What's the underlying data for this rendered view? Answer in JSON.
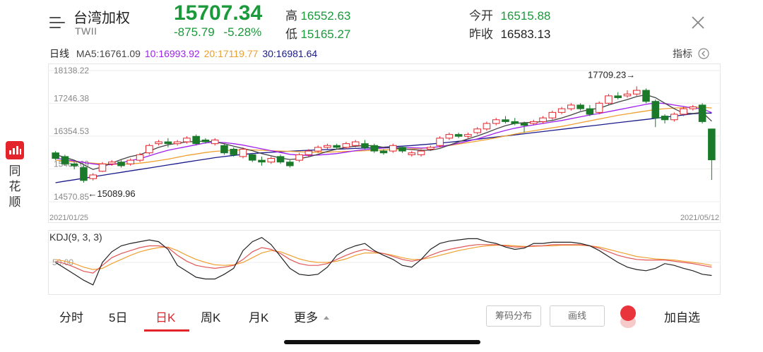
{
  "header": {
    "name": "台湾加权",
    "code": "TWII",
    "price": "15707.34",
    "change": "-875.79",
    "change_pct": "-5.28%",
    "high_label": "高",
    "high_value": "16552.63",
    "low_label": "低",
    "low_value": "15165.27",
    "open_label": "今开",
    "open_value": "16515.88",
    "prev_label": "昨收",
    "prev_value": "16583.13"
  },
  "ma": {
    "period_label": "日线",
    "ma5": "MA5:16761.09",
    "ma10": "10:16993.92",
    "ma20": "20:17119.77",
    "ma30": "30:16981.64",
    "indicator_label": "指标"
  },
  "side_brand": [
    "同",
    "花",
    "顺"
  ],
  "kdj": {
    "label": "KDJ(9, 3, 3)",
    "level": "50.00"
  },
  "chart_data": {
    "type": "candlestick",
    "title": "",
    "y_ticks": [
      "18138.22",
      "17246.38",
      "16354.53",
      "15462.69",
      "14570.85"
    ],
    "ylim": [
      14570.85,
      18138.22
    ],
    "x_start": "2021/01/25",
    "x_end": "2021/05/12",
    "annotations": {
      "max": "17709.23→",
      "min": "←15089.96"
    },
    "colors": {
      "up": "#e3242b",
      "down": "#1a7a2a",
      "ma5": "#444444",
      "ma10": "#a020f0",
      "ma20": "#f0a030",
      "ma30": "#1a1a8a"
    },
    "candles": [
      [
        15900,
        15750,
        15950,
        15700
      ],
      [
        15800,
        15600,
        15850,
        15550
      ],
      [
        15600,
        15550,
        15650,
        15450
      ],
      [
        15500,
        15150,
        15550,
        15090
      ],
      [
        15200,
        15300,
        15350,
        15150
      ],
      [
        15400,
        15600,
        15650,
        15380
      ],
      [
        15600,
        15650,
        15700,
        15550
      ],
      [
        15650,
        15550,
        15700,
        15500
      ],
      [
        15600,
        15700,
        15750,
        15550
      ],
      [
        15700,
        15850,
        15900,
        15650
      ],
      [
        15900,
        16100,
        16150,
        15850
      ],
      [
        16150,
        16200,
        16250,
        16100
      ],
      [
        16200,
        16150,
        16300,
        16050
      ],
      [
        16150,
        16200,
        16250,
        16100
      ],
      [
        16200,
        16300,
        16350,
        16150
      ],
      [
        16350,
        16150,
        16400,
        16100
      ],
      [
        16250,
        16200,
        16300,
        16150
      ],
      [
        16150,
        16250,
        16300,
        16100
      ],
      [
        16100,
        15900,
        16150,
        15850
      ],
      [
        16000,
        15850,
        16050,
        15800
      ],
      [
        15800,
        16000,
        16050,
        15750
      ],
      [
        15850,
        15700,
        15900,
        15650
      ],
      [
        15700,
        15650,
        15800,
        15550
      ],
      [
        15650,
        15750,
        15800,
        15600
      ],
      [
        15800,
        15650,
        15850,
        15600
      ],
      [
        15650,
        15550,
        15700,
        15500
      ],
      [
        15700,
        15850,
        15900,
        15650
      ],
      [
        15850,
        15950,
        16000,
        15800
      ],
      [
        15950,
        16050,
        16100,
        15900
      ],
      [
        16050,
        16100,
        16150,
        16000
      ],
      [
        16100,
        16050,
        16150,
        16000
      ],
      [
        16050,
        16150,
        16200,
        16000
      ],
      [
        16100,
        16200,
        16250,
        16050
      ],
      [
        16150,
        16050,
        16250,
        16000
      ],
      [
        16100,
        15950,
        16150,
        15900
      ],
      [
        15950,
        15900,
        16000,
        15850
      ],
      [
        15950,
        16100,
        16150,
        15900
      ],
      [
        16050,
        15950,
        16100,
        15900
      ],
      [
        15850,
        15900,
        15950,
        15800
      ],
      [
        15850,
        15950,
        16000,
        15800
      ],
      [
        16000,
        16050,
        16100,
        15950
      ],
      [
        16100,
        16300,
        16350,
        16050
      ],
      [
        16300,
        16400,
        16450,
        16250
      ],
      [
        16400,
        16350,
        16450,
        16300
      ],
      [
        16350,
        16400,
        16450,
        16300
      ],
      [
        16450,
        16550,
        16600,
        16400
      ],
      [
        16550,
        16700,
        16750,
        16500
      ],
      [
        16700,
        16800,
        16850,
        16650
      ],
      [
        16800,
        16750,
        16900,
        16700
      ],
      [
        16750,
        16700,
        16850,
        16650
      ],
      [
        16700,
        16650,
        16750,
        16450
      ],
      [
        16700,
        16750,
        16800,
        16650
      ],
      [
        16750,
        16850,
        16900,
        16700
      ],
      [
        16850,
        17000,
        17050,
        16800
      ],
      [
        17000,
        17100,
        17150,
        16950
      ],
      [
        17100,
        17200,
        17250,
        17050
      ],
      [
        17200,
        17100,
        17250,
        17050
      ],
      [
        17100,
        16950,
        17200,
        16900
      ],
      [
        17000,
        17250,
        17300,
        16950
      ],
      [
        17250,
        17450,
        17500,
        17200
      ],
      [
        17450,
        17400,
        17550,
        17350
      ],
      [
        17450,
        17500,
        17600,
        17400
      ],
      [
        17500,
        17600,
        17709,
        17450
      ],
      [
        17600,
        17300,
        17650,
        17250
      ],
      [
        17300,
        16850,
        17350,
        16600
      ],
      [
        16900,
        16800,
        16950,
        16700
      ],
      [
        16800,
        16950,
        17000,
        16750
      ],
      [
        16950,
        17100,
        17150,
        16900
      ],
      [
        17100,
        17150,
        17200,
        17050
      ],
      [
        17200,
        16750,
        17250,
        16700
      ],
      [
        16550,
        15710,
        16550,
        15165
      ]
    ],
    "ma_series": {
      "ma5": [
        15850,
        15780,
        15700,
        15580,
        15450,
        15520,
        15620,
        15720,
        15800,
        15850,
        15950,
        16050,
        16120,
        16160,
        16200,
        16210,
        16220,
        16200,
        16150,
        16080,
        16020,
        15960,
        15880,
        15820,
        15760,
        15720,
        15740,
        15790,
        15860,
        15940,
        16000,
        16050,
        16080,
        16100,
        16090,
        16050,
        16030,
        16010,
        15990,
        15970,
        15970,
        16020,
        16110,
        16200,
        16280,
        16360,
        16450,
        16550,
        16640,
        16700,
        16720,
        16730,
        16750,
        16780,
        16850,
        16930,
        17020,
        17080,
        17110,
        17200,
        17280,
        17350,
        17430,
        17480,
        17400,
        17250,
        17100,
        16980,
        16970,
        17000,
        16761
      ],
      "ma10": [
        15750,
        15720,
        15680,
        15640,
        15600,
        15570,
        15580,
        15630,
        15690,
        15740,
        15820,
        15900,
        15970,
        16020,
        16070,
        16120,
        16170,
        16190,
        16180,
        16150,
        16110,
        16060,
        16010,
        15960,
        15910,
        15860,
        15840,
        15830,
        15840,
        15860,
        15880,
        15920,
        15960,
        15990,
        16010,
        16030,
        16040,
        16050,
        16040,
        16030,
        16040,
        16070,
        16110,
        16160,
        16220,
        16280,
        16360,
        16440,
        16510,
        16570,
        16620,
        16660,
        16700,
        16740,
        16780,
        16830,
        16880,
        16930,
        16970,
        17020,
        17070,
        17120,
        17170,
        17220,
        17260,
        17240,
        17200,
        17160,
        17120,
        17100,
        16994
      ],
      "ma20": [
        15700,
        15680,
        15660,
        15640,
        15620,
        15600,
        15590,
        15590,
        15600,
        15620,
        15650,
        15690,
        15730,
        15780,
        15830,
        15870,
        15910,
        15940,
        15960,
        15970,
        15980,
        15980,
        15970,
        15960,
        15950,
        15940,
        15930,
        15920,
        15920,
        15920,
        15930,
        15940,
        15950,
        15960,
        15970,
        15980,
        15990,
        16000,
        16010,
        16020,
        16040,
        16070,
        16100,
        16140,
        16180,
        16220,
        16260,
        16310,
        16360,
        16410,
        16460,
        16500,
        16540,
        16580,
        16620,
        16670,
        16720,
        16770,
        16820,
        16870,
        16920,
        16960,
        17000,
        17040,
        17080,
        17100,
        17120,
        17130,
        17140,
        17140,
        17120
      ],
      "ma30": [
        15089,
        15130,
        15170,
        15210,
        15250,
        15290,
        15330,
        15370,
        15410,
        15450,
        15490,
        15530,
        15570,
        15610,
        15650,
        15690,
        15730,
        15770,
        15800,
        15830,
        15860,
        15880,
        15900,
        15915,
        15930,
        15945,
        15960,
        15970,
        15980,
        15990,
        16000,
        16010,
        16020,
        16030,
        16040,
        16055,
        16070,
        16085,
        16100,
        16120,
        16140,
        16165,
        16190,
        16215,
        16240,
        16270,
        16300,
        16330,
        16360,
        16390,
        16420,
        16450,
        16480,
        16510,
        16540,
        16570,
        16600,
        16630,
        16660,
        16690,
        16720,
        16750,
        16780,
        16810,
        16840,
        16870,
        16900,
        16930,
        16960,
        16980,
        16982
      ]
    }
  },
  "kdj_data": {
    "k": [
      52,
      48,
      42,
      35,
      32,
      45,
      58,
      65,
      70,
      75,
      78,
      78,
      75,
      62,
      52,
      45,
      42,
      40,
      42,
      45,
      55,
      68,
      75,
      72,
      65,
      55,
      48,
      45,
      45,
      48,
      55,
      62,
      68,
      72,
      68,
      65,
      60,
      55,
      52,
      55,
      62,
      68,
      72,
      75,
      78,
      80,
      80,
      80,
      78,
      76,
      76,
      78,
      78,
      80,
      80,
      80,
      80,
      78,
      74,
      68,
      62,
      58,
      55,
      54,
      54,
      54,
      52,
      50,
      48,
      45,
      42
    ],
    "d": [
      55,
      52,
      48,
      42,
      38,
      40,
      48,
      55,
      62,
      68,
      72,
      75,
      76,
      70,
      62,
      55,
      50,
      46,
      45,
      46,
      50,
      58,
      66,
      70,
      68,
      62,
      56,
      52,
      50,
      50,
      52,
      56,
      62,
      66,
      66,
      65,
      62,
      58,
      55,
      55,
      58,
      62,
      66,
      70,
      73,
      76,
      78,
      79,
      79,
      78,
      77,
      77,
      78,
      78,
      79,
      79,
      79,
      78,
      76,
      72,
      68,
      64,
      60,
      58,
      56,
      55,
      54,
      52,
      50,
      48,
      45
    ],
    "j": [
      50,
      40,
      30,
      20,
      12,
      50,
      68,
      78,
      82,
      85,
      88,
      85,
      72,
      45,
      35,
      25,
      22,
      22,
      30,
      40,
      70,
      85,
      92,
      80,
      60,
      40,
      30,
      28,
      30,
      42,
      62,
      72,
      78,
      82,
      70,
      62,
      55,
      45,
      42,
      55,
      72,
      82,
      86,
      88,
      90,
      90,
      85,
      82,
      76,
      72,
      74,
      82,
      82,
      84,
      84,
      84,
      82,
      78,
      70,
      60,
      50,
      42,
      38,
      36,
      40,
      48,
      45,
      40,
      36,
      30,
      28
    ]
  },
  "tabs": [
    "分时",
    "5日",
    "日K",
    "周K",
    "月K",
    "更多"
  ],
  "active_tab": "日K",
  "buttons": {
    "chips": "筹码分布",
    "draw": "画线",
    "add_fav": "加自选"
  }
}
